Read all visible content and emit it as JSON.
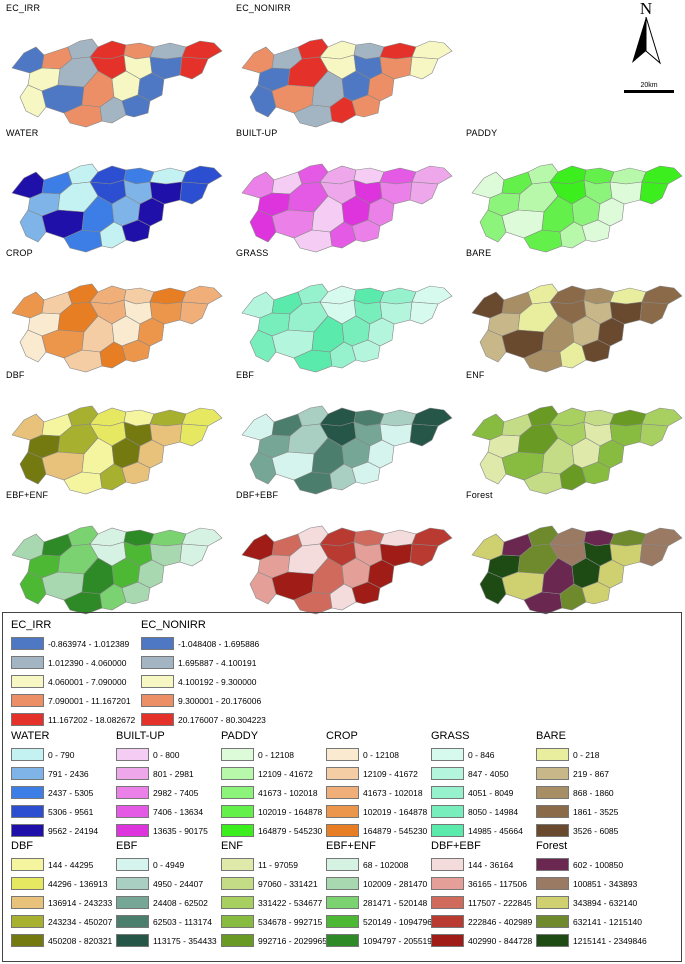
{
  "maps": [
    {
      "label": "EC_IRR",
      "palette": "ec"
    },
    {
      "label": "EC_NONIRR",
      "palette": "ec"
    },
    {
      "label": "",
      "palette": "none"
    },
    {
      "label": "WATER",
      "palette": "water"
    },
    {
      "label": "BUILT-UP",
      "palette": "builtup"
    },
    {
      "label": "PADDY",
      "palette": "paddy"
    },
    {
      "label": "CROP",
      "palette": "crop"
    },
    {
      "label": "GRASS",
      "palette": "grass"
    },
    {
      "label": "BARE",
      "palette": "bare"
    },
    {
      "label": "DBF",
      "palette": "dbf"
    },
    {
      "label": "EBF",
      "palette": "ebf"
    },
    {
      "label": "ENF",
      "palette": "enf"
    },
    {
      "label": "EBF+ENF",
      "palette": "ebfenf"
    },
    {
      "label": "DBF+EBF",
      "palette": "dbfebf"
    },
    {
      "label": "Forest",
      "palette": "forest"
    }
  ],
  "north_arrow": {
    "label": "N"
  },
  "scale_bar": {
    "label": "20km"
  },
  "legend": {
    "ec": [
      {
        "title": "EC_IRR",
        "classes": [
          {
            "range": "-0.863974 - 1.012389",
            "color": "#4f78c4"
          },
          {
            "range": "1.012390 - 4.060000",
            "color": "#a3b5c2"
          },
          {
            "range": "4.060001 - 7.090000",
            "color": "#f7f7c4"
          },
          {
            "range": "7.090001 - 11.167201",
            "color": "#ec8f66"
          },
          {
            "range": "11.167202 - 18.082672",
            "color": "#e4322b"
          }
        ]
      },
      {
        "title": "EC_NONIRR",
        "classes": [
          {
            "range": "-1.048408 - 1.695886",
            "color": "#4f78c4"
          },
          {
            "range": "1.695887 - 4.100191",
            "color": "#a3b5c2"
          },
          {
            "range": "4.100192 - 9.300000",
            "color": "#f7f7c4"
          },
          {
            "range": "9.300001 - 20.176006",
            "color": "#ec8f66"
          },
          {
            "range": "20.176007 - 80.304223",
            "color": "#e4322b"
          }
        ]
      }
    ],
    "row1": [
      {
        "title": "WATER",
        "classes": [
          {
            "range": "0 - 790",
            "color": "#c4f2f2"
          },
          {
            "range": "791 - 2436",
            "color": "#7eb4e8"
          },
          {
            "range": "2437 - 5305",
            "color": "#3c7de6"
          },
          {
            "range": "5306 - 9561",
            "color": "#2b4fd0"
          },
          {
            "range": "9562 - 24194",
            "color": "#1e10a8"
          }
        ]
      },
      {
        "title": "BUILT-UP",
        "classes": [
          {
            "range": "0 - 800",
            "color": "#f5ccf3"
          },
          {
            "range": "801 - 2981",
            "color": "#efa7ec"
          },
          {
            "range": "2982 - 7405",
            "color": "#ea80e8"
          },
          {
            "range": "7406 - 13634",
            "color": "#e45ae4"
          },
          {
            "range": "13635 - 90175",
            "color": "#de34de"
          }
        ]
      },
      {
        "title": "PADDY",
        "classes": [
          {
            "range": "0 - 12108",
            "color": "#ddfbd8"
          },
          {
            "range": "12109 - 41672",
            "color": "#b8f8aa"
          },
          {
            "range": "41673 - 102018",
            "color": "#8cf47a"
          },
          {
            "range": "102019 - 164878",
            "color": "#64f04a"
          },
          {
            "range": "164879 - 545230",
            "color": "#3cee1e"
          }
        ]
      },
      {
        "title": "CROP",
        "classes": [
          {
            "range": "0 - 12108",
            "color": "#f9ead0"
          },
          {
            "range": "12109 - 41672",
            "color": "#f4cda4"
          },
          {
            "range": "41673 - 102018",
            "color": "#f0ae78"
          },
          {
            "range": "102019 - 164878",
            "color": "#ec964c"
          },
          {
            "range": "164879 - 545230",
            "color": "#e87e24"
          }
        ]
      },
      {
        "title": "GRASS",
        "classes": [
          {
            "range": "0 - 846",
            "color": "#d6faee"
          },
          {
            "range": "847 - 4050",
            "color": "#b4f6dd"
          },
          {
            "range": "4051 - 8049",
            "color": "#95f2cd"
          },
          {
            "range": "8050 - 14984",
            "color": "#77eebc"
          },
          {
            "range": "14985 - 45664",
            "color": "#5aeaac"
          }
        ]
      },
      {
        "title": "BARE",
        "classes": [
          {
            "range": "0 - 218",
            "color": "#e9ed9e"
          },
          {
            "range": "219 - 867",
            "color": "#c8b788"
          },
          {
            "range": "868 - 1860",
            "color": "#a88e64"
          },
          {
            "range": "1861 - 3525",
            "color": "#8a6a48"
          },
          {
            "range": "3526 - 6085",
            "color": "#6a4a2e"
          }
        ]
      }
    ],
    "row2": [
      {
        "title": "DBF",
        "classes": [
          {
            "range": "144 - 44295",
            "color": "#f5f5a0"
          },
          {
            "range": "44296 - 136913",
            "color": "#e5e860"
          },
          {
            "range": "136914 - 243233",
            "color": "#e8c27a"
          },
          {
            "range": "243234 - 450207",
            "color": "#a8b030"
          },
          {
            "range": "450208 - 820321",
            "color": "#747a10"
          }
        ]
      },
      {
        "title": "EBF",
        "classes": [
          {
            "range": "0 - 4949",
            "color": "#d6f4ee"
          },
          {
            "range": "4950 - 24407",
            "color": "#a8cfc2"
          },
          {
            "range": "24408 - 62502",
            "color": "#76a696"
          },
          {
            "range": "62503 - 113174",
            "color": "#4c7e6e"
          },
          {
            "range": "113175 - 354433",
            "color": "#265648"
          }
        ]
      },
      {
        "title": "ENF",
        "classes": [
          {
            "range": "11 - 97059",
            "color": "#dfeaaa"
          },
          {
            "range": "97060 - 331421",
            "color": "#c4dc86"
          },
          {
            "range": "331422 - 534677",
            "color": "#a8d060"
          },
          {
            "range": "534678 - 992715",
            "color": "#88bc40"
          },
          {
            "range": "992716 - 2029965",
            "color": "#689a24"
          }
        ]
      },
      {
        "title": "EBF+ENF",
        "classes": [
          {
            "range": "68 - 102008",
            "color": "#d6f2e2"
          },
          {
            "range": "102009 - 281470",
            "color": "#a8d8b0"
          },
          {
            "range": "281471 - 520148",
            "color": "#7ad270"
          },
          {
            "range": "520149 - 1094796",
            "color": "#4cb834"
          },
          {
            "range": "1094797 - 2055197",
            "color": "#2e8a26"
          }
        ]
      },
      {
        "title": "DBF+EBF",
        "classes": [
          {
            "range": "144 - 36164",
            "color": "#f4dcdc"
          },
          {
            "range": "36165 - 117506",
            "color": "#e4a098"
          },
          {
            "range": "117507 - 222845",
            "color": "#d06a5c"
          },
          {
            "range": "222846 - 402989",
            "color": "#b83a30"
          },
          {
            "range": "402990 - 844728",
            "color": "#a01c16"
          }
        ]
      },
      {
        "title": "Forest",
        "classes": [
          {
            "range": "602 - 100850",
            "color": "#6a2850"
          },
          {
            "range": "100851 - 343893",
            "color": "#9a7a62"
          },
          {
            "range": "343894 - 632140",
            "color": "#cfd070"
          },
          {
            "range": "632141 - 1215140",
            "color": "#6e8a2c"
          },
          {
            "range": "1215141 - 2349846",
            "color": "#1e4a14"
          }
        ]
      }
    ]
  }
}
